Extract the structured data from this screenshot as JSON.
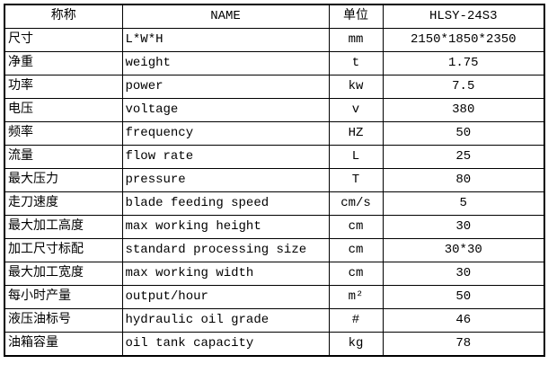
{
  "table": {
    "headers": {
      "label_cn": "称称",
      "name_en": "NAME",
      "unit": "单位",
      "model": "HLSY-24S3"
    },
    "rows": [
      {
        "label": "尺寸",
        "name": "L*W*H",
        "unit": "mm",
        "value": "2150*1850*2350"
      },
      {
        "label": "净重",
        "name": "weight",
        "unit": "t",
        "value": "1.75"
      },
      {
        "label": "功率",
        "name": "power",
        "unit": "kw",
        "value": "7.5"
      },
      {
        "label": "电压",
        "name": "voltage",
        "unit": "v",
        "value": "380"
      },
      {
        "label": "频率",
        "name": "frequency",
        "unit": "HZ",
        "value": "50"
      },
      {
        "label": "流量",
        "name": "flow rate",
        "unit": "L",
        "value": "25"
      },
      {
        "label": "最大压力",
        "name": "pressure",
        "unit": "T",
        "value": "80"
      },
      {
        "label": "走刀速度",
        "name": "blade feeding speed",
        "unit": "cm/s",
        "value": "5"
      },
      {
        "label": "最大加工高度",
        "name": "max working height",
        "unit": "cm",
        "value": "30"
      },
      {
        "label": "加工尺寸标配",
        "name": "standard processing size",
        "unit": "cm",
        "value": "30*30"
      },
      {
        "label": "最大加工宽度",
        "name": "max working width",
        "unit": "cm",
        "value": "30"
      },
      {
        "label": "每小时产量",
        "name": "output/hour",
        "unit": "m²",
        "value": "50"
      },
      {
        "label": "液压油标号",
        "name": "hydraulic oil grade",
        "unit": "#",
        "value": "46"
      },
      {
        "label": "油箱容量",
        "name": "oil tank capacity",
        "unit": "kg",
        "value": "78"
      }
    ]
  }
}
